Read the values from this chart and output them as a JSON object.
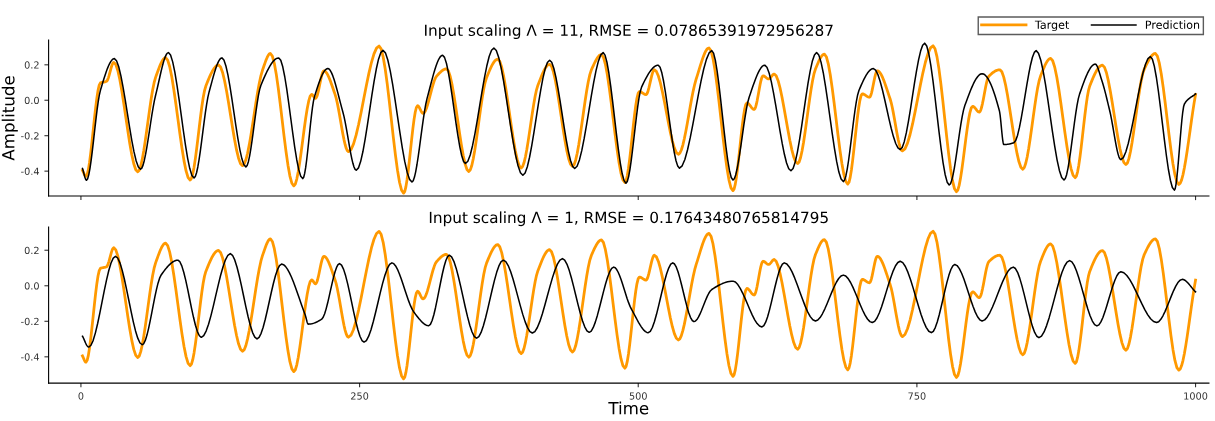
{
  "chart_data": [
    {
      "type": "line",
      "title": "Input scaling Λ = 11, RMSE = 0.07865391972956287",
      "ylabel": "Amplitude",
      "xlim": [
        -29,
        1012
      ],
      "ylim": [
        -0.54,
        0.34
      ],
      "xticks": [
        0,
        250,
        500,
        750,
        1000
      ],
      "yticks": [
        {
          "value": -0.4,
          "label": "-0.4"
        },
        {
          "value": -0.2,
          "label": "-0.2"
        },
        {
          "value": 0,
          "label": "0.0"
        },
        {
          "value": 0.2,
          "label": "0.2"
        }
      ],
      "tick_labels": "y",
      "grid": false,
      "legend": "top right",
      "series": [
        {
          "name": "Target",
          "color": "#ff9900",
          "x": [
            1.4,
            4.5,
            17.5,
            23,
            29.5,
            51,
            67,
            76,
            98,
            112,
            123.5,
            145,
            163,
            170,
            191,
            207,
            210.5,
            218,
            228,
            240,
            267.5,
            289.5,
            302,
            307,
            319,
            328,
            348,
            364,
            374,
            395,
            410,
            420.5,
            441,
            458,
            467,
            488,
            501,
            507,
            514.5,
            536,
            552,
            563.5,
            585,
            597.5,
            604,
            612,
            617,
            622,
            643,
            659,
            667,
            688,
            701,
            707.5,
            714.5,
            726,
            737,
            764.5,
            785.5,
            800,
            806,
            814.5,
            824.5,
            845,
            861,
            870,
            892,
            905,
            916.5,
            937.5,
            954,
            964,
            985,
            1000
          ],
          "values": [
            -0.395,
            -0.43,
            0.098,
            0.107,
            0.214,
            -0.404,
            0.129,
            0.24,
            -0.45,
            0.079,
            0.199,
            -0.369,
            0.172,
            0.264,
            -0.483,
            0.033,
            0.011,
            0.166,
            0.033,
            -0.29,
            0.306,
            -0.524,
            -0.031,
            -0.074,
            0.135,
            0.177,
            -0.402,
            0.129,
            0.232,
            -0.382,
            0.085,
            0.203,
            -0.373,
            0.172,
            0.258,
            -0.464,
            0.049,
            0.032,
            0.172,
            -0.305,
            0.12,
            0.295,
            -0.51,
            -0.015,
            -0.052,
            0.138,
            0.12,
            0.148,
            -0.357,
            0.176,
            0.26,
            -0.473,
            0.036,
            0.017,
            0.166,
            0.007,
            -0.286,
            0.307,
            -0.516,
            -0.034,
            -0.067,
            0.135,
            0.172,
            -0.389,
            0.138,
            0.236,
            -0.437,
            0.079,
            0.198,
            -0.363,
            0.176,
            0.264,
            -0.475,
            0.032
          ]
        },
        {
          "name": "Prediction",
          "color": "#000000",
          "x": [
            1.4,
            5,
            17.5,
            30,
            53.5,
            67,
            78.5,
            101.5,
            115,
            126.5,
            148,
            161.5,
            177.5,
            199,
            209.5,
            221.5,
            235,
            247,
            271,
            297,
            310.5,
            324.5,
            345,
            370.5,
            396.5,
            420.5,
            443,
            468.5,
            489,
            503,
            518,
            537,
            566,
            585,
            599.5,
            613.5,
            637,
            660,
            684,
            698,
            711,
            735,
            757,
            779,
            793,
            808.5,
            824,
            828,
            837,
            857,
            882,
            896,
            910,
            916,
            923,
            933,
            959.5,
            981,
            990,
            1000
          ],
          "values": [
            -0.385,
            -0.451,
            0.056,
            0.235,
            -0.389,
            0.028,
            0.269,
            -0.438,
            0.047,
            0.239,
            -0.376,
            0.085,
            0.239,
            -0.442,
            0.019,
            0.179,
            -0.066,
            -0.395,
            0.282,
            -0.461,
            0.009,
            0.254,
            -0.357,
            0.295,
            -0.423,
            0.226,
            -0.385,
            0.269,
            -0.468,
            0.074,
            0.198,
            -0.383,
            0.28,
            -0.45,
            0.017,
            0.198,
            -0.398,
            0.269,
            -0.459,
            0.055,
            0.179,
            -0.278,
            0.322,
            -0.478,
            -0.03,
            0.15,
            -0.059,
            -0.25,
            -0.24,
            0.28,
            -0.45,
            0.036,
            0.204,
            0.11,
            -0.059,
            -0.335,
            0.246,
            -0.507,
            -0.021,
            0.036
          ]
        }
      ]
    },
    {
      "type": "line",
      "title": "Input scaling Λ = 1, RMSE = 0.17643480765814795",
      "xlabel": "Time",
      "xlim": [
        -29,
        1012
      ],
      "ylim": [
        -0.548,
        0.33
      ],
      "xticks": [
        0,
        250,
        500,
        750,
        1000
      ],
      "yticks": [
        {
          "value": -0.4,
          "label": "-0.4"
        },
        {
          "value": -0.2,
          "label": "-0.2"
        },
        {
          "value": 0,
          "label": "0.0"
        },
        {
          "value": 0.2,
          "label": "0.2"
        }
      ],
      "grid": false,
      "series": [
        {
          "color": "#ff9900",
          "x": [
            1.4,
            4.5,
            17.5,
            23,
            29.5,
            51,
            67,
            76,
            98,
            112,
            123.5,
            145,
            163,
            170,
            191,
            207,
            210.5,
            218,
            228,
            240,
            267.5,
            289.5,
            302,
            307,
            319,
            328,
            348,
            364,
            374,
            395,
            410,
            420.5,
            441,
            458,
            467,
            488,
            501,
            507,
            514.5,
            536,
            552,
            563.5,
            585,
            597.5,
            604,
            612,
            617,
            622,
            643,
            659,
            667,
            688,
            701,
            707.5,
            714.5,
            726,
            737,
            764.5,
            785.5,
            800,
            806,
            814.5,
            824.5,
            845,
            861,
            870,
            892,
            905,
            916.5,
            937.5,
            954,
            964,
            985,
            1000
          ],
          "values": [
            -0.395,
            -0.43,
            0.098,
            0.107,
            0.214,
            -0.404,
            0.129,
            0.24,
            -0.45,
            0.079,
            0.199,
            -0.369,
            0.172,
            0.264,
            -0.483,
            0.033,
            0.011,
            0.166,
            0.033,
            -0.29,
            0.306,
            -0.524,
            -0.031,
            -0.074,
            0.135,
            0.177,
            -0.402,
            0.129,
            0.232,
            -0.382,
            0.085,
            0.203,
            -0.373,
            0.172,
            0.258,
            -0.464,
            0.049,
            0.032,
            0.172,
            -0.305,
            0.12,
            0.295,
            -0.51,
            -0.015,
            -0.052,
            0.138,
            0.12,
            0.148,
            -0.357,
            0.176,
            0.26,
            -0.473,
            0.036,
            0.017,
            0.166,
            0.007,
            -0.286,
            0.307,
            -0.516,
            -0.034,
            -0.067,
            0.135,
            0.172,
            -0.389,
            0.138,
            0.236,
            -0.437,
            0.079,
            0.198,
            -0.363,
            0.176,
            0.264,
            -0.475,
            0.032
          ]
        },
        {
          "color": "#000000",
          "x": [
            1.4,
            7,
            31,
            55,
            72,
            87,
            108,
            134,
            158,
            180,
            201,
            204,
            216,
            232,
            254,
            279,
            299,
            312,
            330.5,
            355,
            379,
            405,
            432,
            456,
            478,
            494,
            509,
            531,
            550,
            566,
            585,
            611,
            631,
            659,
            684,
            710,
            735,
            763,
            784,
            808.5,
            836.5,
            859.5,
            887,
            911.5,
            933,
            965,
            988,
            1000
          ],
          "values": [
            -0.284,
            -0.345,
            0.166,
            -0.332,
            0.061,
            0.144,
            -0.29,
            0.181,
            -0.299,
            0.122,
            -0.16,
            -0.216,
            -0.188,
            0.125,
            -0.317,
            0.129,
            -0.151,
            -0.225,
            0.172,
            -0.295,
            0.144,
            -0.266,
            0.153,
            -0.262,
            0.105,
            -0.133,
            -0.264,
            0.129,
            -0.202,
            -0.021,
            0.026,
            -0.232,
            0.129,
            -0.198,
            0.06,
            -0.207,
            0.138,
            -0.264,
            0.12,
            -0.198,
            0.105,
            -0.292,
            0.142,
            -0.226,
            0.079,
            -0.207,
            0.036,
            -0.034
          ]
        }
      ]
    }
  ]
}
